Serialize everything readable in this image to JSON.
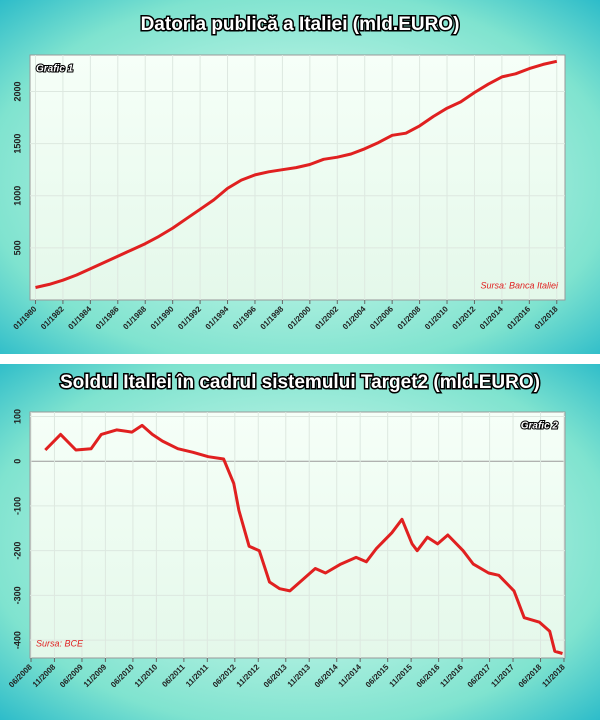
{
  "chart_data": [
    {
      "type": "line",
      "title": "Datoria publică a Italiei  (mld.EURO)",
      "label": "Grafic 1",
      "source": "Sursa: Banca Italiei",
      "color": "#e02020",
      "grid": true,
      "x": [
        1980,
        1981,
        1982,
        1983,
        1984,
        1985,
        1986,
        1987,
        1988,
        1989,
        1990,
        1991,
        1992,
        1993,
        1994,
        1995,
        1996,
        1997,
        1998,
        1999,
        2000,
        2001,
        2002,
        2003,
        2004,
        2005,
        2006,
        2007,
        2008,
        2009,
        2010,
        2011,
        2012,
        2013,
        2014,
        2015,
        2016,
        2017,
        2018
      ],
      "values": [
        120,
        150,
        190,
        240,
        300,
        360,
        420,
        480,
        540,
        610,
        690,
        780,
        870,
        960,
        1070,
        1150,
        1200,
        1230,
        1250,
        1270,
        1300,
        1350,
        1370,
        1400,
        1450,
        1510,
        1580,
        1600,
        1670,
        1760,
        1840,
        1900,
        1990,
        2070,
        2140,
        2170,
        2220,
        2260,
        2290
      ],
      "xlim": [
        1979.6,
        2018.6
      ],
      "xticks": [
        {
          "value": 1980,
          "label": "01/1980"
        },
        {
          "value": 1982,
          "label": "01/1982"
        },
        {
          "value": 1984,
          "label": "01/1984"
        },
        {
          "value": 1986,
          "label": "01/1986"
        },
        {
          "value": 1988,
          "label": "01/1988"
        },
        {
          "value": 1990,
          "label": "01/1990"
        },
        {
          "value": 1992,
          "label": "01/1992"
        },
        {
          "value": 1994,
          "label": "01/1994"
        },
        {
          "value": 1996,
          "label": "01/1996"
        },
        {
          "value": 1998,
          "label": "01/1998"
        },
        {
          "value": 2000,
          "label": "01/2000"
        },
        {
          "value": 2002,
          "label": "01/2002"
        },
        {
          "value": 2004,
          "label": "01/2004"
        },
        {
          "value": 2006,
          "label": "01/2006"
        },
        {
          "value": 2008,
          "label": "01/2008"
        },
        {
          "value": 2010,
          "label": "01/2010"
        },
        {
          "value": 2012,
          "label": "01/2012"
        },
        {
          "value": 2014,
          "label": "01/2014"
        },
        {
          "value": 2016,
          "label": "01/2016"
        },
        {
          "value": 2018,
          "label": "01/2018"
        }
      ],
      "ylim": [
        0,
        2350
      ],
      "yticks": [
        500,
        1000,
        1500,
        2000
      ]
    },
    {
      "type": "line",
      "title": "Soldul Italiei în cadrul sistemului Target2 (mld.EURO)",
      "label": "Grafic 2",
      "source": "Sursa: BCE",
      "color": "#e02020",
      "grid": true,
      "x": [
        2008.7,
        2009.0,
        2009.3,
        2009.6,
        2009.8,
        2010.1,
        2010.4,
        2010.6,
        2010.8,
        2011.0,
        2011.3,
        2011.6,
        2011.9,
        2012.2,
        2012.4,
        2012.5,
        2012.7,
        2012.9,
        2013.1,
        2013.3,
        2013.5,
        2013.8,
        2014.0,
        2014.2,
        2014.5,
        2014.8,
        2015.0,
        2015.2,
        2015.5,
        2015.7,
        2015.9,
        2016.0,
        2016.2,
        2016.4,
        2016.6,
        2016.9,
        2017.1,
        2017.4,
        2017.6,
        2017.9,
        2018.1,
        2018.4,
        2018.6,
        2018.7,
        2018.85
      ],
      "values": [
        25,
        60,
        25,
        28,
        60,
        70,
        65,
        80,
        60,
        45,
        28,
        20,
        10,
        5,
        -50,
        -110,
        -190,
        -200,
        -270,
        -285,
        -290,
        -260,
        -240,
        -250,
        -230,
        -215,
        -225,
        -195,
        -160,
        -130,
        -185,
        -200,
        -170,
        -185,
        -165,
        -200,
        -230,
        -250,
        -255,
        -290,
        -350,
        -360,
        -380,
        -425,
        -430
      ],
      "xlim": [
        2008.4,
        2018.9
      ],
      "xticks": [
        {
          "value": 2008.42,
          "label": "06/2008"
        },
        {
          "value": 2008.88,
          "label": "11/2008"
        },
        {
          "value": 2009.42,
          "label": "06/2009"
        },
        {
          "value": 2009.88,
          "label": "11/2009"
        },
        {
          "value": 2010.42,
          "label": "06/2010"
        },
        {
          "value": 2010.88,
          "label": "11/2010"
        },
        {
          "value": 2011.42,
          "label": "06/2011"
        },
        {
          "value": 2011.88,
          "label": "11/2011"
        },
        {
          "value": 2012.42,
          "label": "06/2012"
        },
        {
          "value": 2012.88,
          "label": "11/2012"
        },
        {
          "value": 2013.42,
          "label": "06/2013"
        },
        {
          "value": 2013.88,
          "label": "11/2013"
        },
        {
          "value": 2014.42,
          "label": "06/2014"
        },
        {
          "value": 2014.88,
          "label": "11/2014"
        },
        {
          "value": 2015.42,
          "label": "06/2015"
        },
        {
          "value": 2015.88,
          "label": "11/2015"
        },
        {
          "value": 2016.42,
          "label": "06/2016"
        },
        {
          "value": 2016.88,
          "label": "11/2016"
        },
        {
          "value": 2017.42,
          "label": "06/2017"
        },
        {
          "value": 2017.88,
          "label": "11/2017"
        },
        {
          "value": 2018.42,
          "label": "06/2018"
        },
        {
          "value": 2018.88,
          "label": "11/2018"
        }
      ],
      "ylim": [
        -440,
        110
      ],
      "yticks": [
        -400,
        -300,
        -200,
        -100,
        0,
        100
      ]
    }
  ]
}
